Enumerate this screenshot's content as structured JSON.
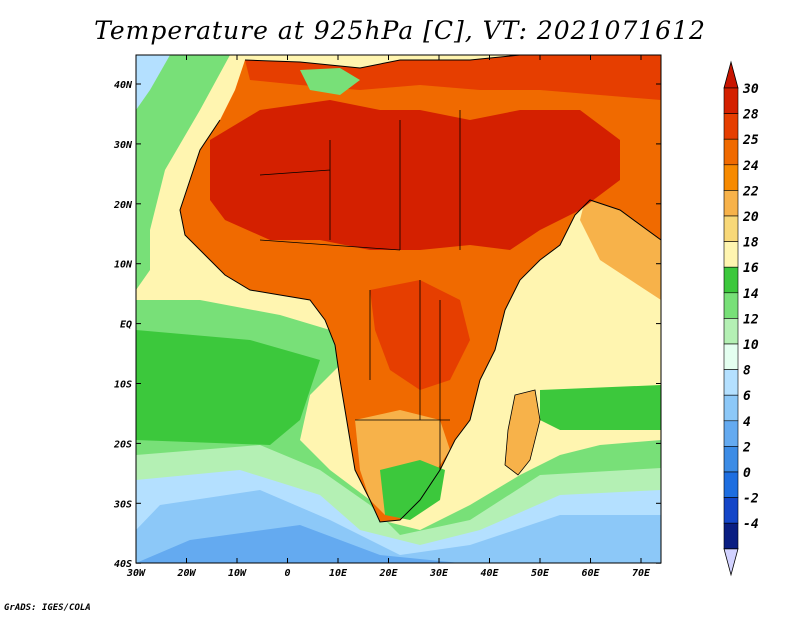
{
  "title": "Temperature at 925hPa [C], VT: 2021071612",
  "credit": "GrADS: IGES/COLA",
  "lon_ticks": [
    "30W",
    "20W",
    "10W",
    "0",
    "10E",
    "20E",
    "30E",
    "40E",
    "50E",
    "60E",
    "70E"
  ],
  "lat_ticks": [
    "40N",
    "30N",
    "20N",
    "10N",
    "EQ",
    "10S",
    "20S",
    "30S",
    "40S"
  ],
  "colorbar": {
    "labels": [
      "30",
      "28",
      "25",
      "24",
      "22",
      "20",
      "18",
      "16",
      "14",
      "12",
      "10",
      "8",
      "6",
      "4",
      "2",
      "0",
      "-2",
      "-4"
    ],
    "colors": [
      "#d42000",
      "#e63e00",
      "#f06a00",
      "#f78a00",
      "#f7b24a",
      "#f8d878",
      "#fff5b0",
      "#3cc83c",
      "#78e078",
      "#b4f0b4",
      "#e4fff0",
      "#b4e0ff",
      "#8cc8f8",
      "#64aaf0",
      "#3c8ce6",
      "#1e6ee0",
      "#1446c8",
      "#0a1e82"
    ],
    "top_arrow_color": "#c81400",
    "bottom_arrow_color": "#d2d2ff"
  },
  "palette": {
    "hot": "#d42000",
    "warm": "#f06a00",
    "ocean_warm": "#f8d878",
    "ocean_mid": "#78e078",
    "ocean_cool": "#b4e0ff",
    "ocean_cold": "#64aaf0"
  }
}
